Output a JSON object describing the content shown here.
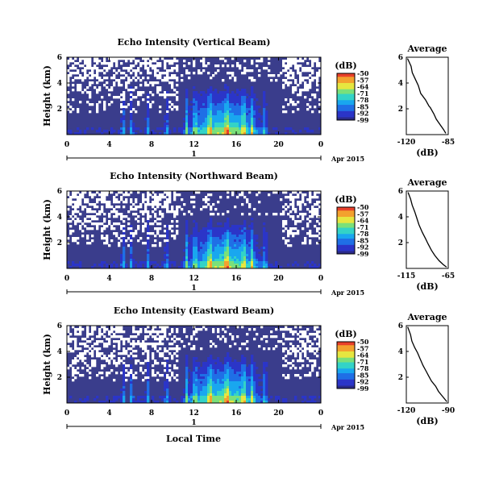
{
  "figure": {
    "xlabel": "Local Time",
    "date_label": "Apr 2015",
    "day_label": "1"
  },
  "colors": {
    "colormap": [
      "#2a2a8a",
      "#2b35c8",
      "#1f6fe6",
      "#19a7ef",
      "#33d3c7",
      "#7ae07a",
      "#e6e640",
      "#f3a12e",
      "#e8402a"
    ],
    "background": "#3a3d8c"
  },
  "chart_data": [
    {
      "type": "heatmap",
      "title": "Echo Intensity (Vertical Beam)",
      "ylabel": "Height (km)",
      "xlabel": "Local Time",
      "x_ticks": [
        "0",
        "4",
        "8",
        "12",
        "16",
        "20",
        "0"
      ],
      "y_ticks": [
        "6",
        "4",
        "2"
      ],
      "xlim_hours": [
        0,
        24
      ],
      "ylim_km": [
        0,
        6
      ],
      "colorbar": {
        "unit": "(dB)",
        "ticks": [
          "-50",
          "-57",
          "-64",
          "-71",
          "-78",
          "-85",
          "-92",
          "-99"
        ],
        "range": [
          -99,
          -50
        ]
      }
    },
    {
      "type": "line",
      "title": "Average",
      "xlabel": "(dB)",
      "x_ticks": [
        "-120",
        "-85"
      ],
      "y_ticks": [
        "6",
        "4",
        "2"
      ],
      "xlim": [
        -120,
        -85
      ],
      "ylim": [
        0,
        6
      ],
      "series": [
        {
          "x": [
            -119,
            -116,
            -115,
            -112,
            -110,
            -108,
            -104,
            -101,
            -100,
            -97,
            -95,
            -92,
            -89,
            -87
          ],
          "y": [
            5.9,
            5.3,
            4.8,
            4.2,
            3.8,
            3.2,
            2.7,
            2.2,
            2.1,
            1.6,
            1.2,
            0.8,
            0.4,
            0.1
          ]
        }
      ]
    },
    {
      "type": "heatmap",
      "title": "Echo Intensity (Northward Beam)",
      "ylabel": "Height (km)",
      "xlabel": "Local Time",
      "x_ticks": [
        "0",
        "4",
        "8",
        "12",
        "16",
        "20",
        "0"
      ],
      "y_ticks": [
        "6",
        "4",
        "2"
      ],
      "xlim_hours": [
        0,
        24
      ],
      "ylim_km": [
        0,
        6
      ],
      "colorbar": {
        "unit": "(dB)",
        "ticks": [
          "-50",
          "-57",
          "-64",
          "-71",
          "-78",
          "-85",
          "-92",
          "-99"
        ],
        "range": [
          -99,
          -50
        ]
      }
    },
    {
      "type": "line",
      "title": "Average",
      "xlabel": "(dB)",
      "x_ticks": [
        "-115",
        "-65"
      ],
      "y_ticks": [
        "6",
        "4",
        "2"
      ],
      "xlim": [
        -115,
        -65
      ],
      "ylim": [
        0,
        6
      ],
      "series": [
        {
          "x": [
            -113,
            -110,
            -108,
            -105,
            -103,
            -100,
            -96,
            -92,
            -89,
            -85,
            -81,
            -76,
            -71,
            -67
          ],
          "y": [
            5.9,
            5.4,
            4.9,
            4.4,
            4.0,
            3.4,
            2.8,
            2.3,
            1.9,
            1.4,
            1.0,
            0.6,
            0.3,
            0.1
          ]
        }
      ]
    },
    {
      "type": "heatmap",
      "title": "Echo Intensity (Eastward Beam)",
      "ylabel": "Height (km)",
      "xlabel": "Local Time",
      "x_ticks": [
        "0",
        "4",
        "8",
        "12",
        "16",
        "20",
        "0"
      ],
      "y_ticks": [
        "6",
        "4",
        "2"
      ],
      "xlim_hours": [
        0,
        24
      ],
      "ylim_km": [
        0,
        6
      ],
      "colorbar": {
        "unit": "(dB)",
        "ticks": [
          "-50",
          "-57",
          "-64",
          "-71",
          "-78",
          "-85",
          "-92",
          "-99"
        ],
        "range": [
          -99,
          -50
        ]
      }
    },
    {
      "type": "line",
      "title": "Average",
      "xlabel": "(dB)",
      "x_ticks": [
        "-120",
        "-90"
      ],
      "y_ticks": [
        "6",
        "4",
        "2"
      ],
      "xlim": [
        -120,
        -90
      ],
      "ylim": [
        0,
        6
      ],
      "series": [
        {
          "x": [
            -119,
            -117,
            -116,
            -114,
            -112,
            -110,
            -108,
            -106,
            -104,
            -102,
            -99,
            -97,
            -94,
            -91
          ],
          "y": [
            5.9,
            5.3,
            4.8,
            4.3,
            3.9,
            3.4,
            2.9,
            2.5,
            2.1,
            1.7,
            1.3,
            0.9,
            0.5,
            0.1
          ]
        }
      ]
    }
  ]
}
